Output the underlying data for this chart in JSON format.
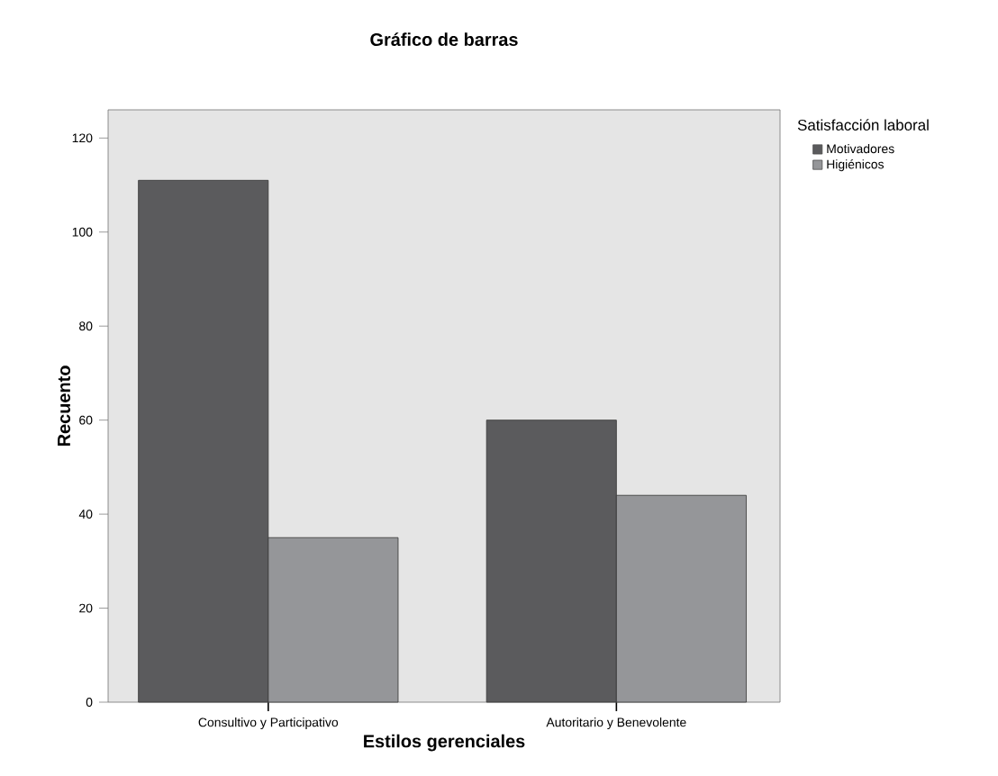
{
  "chart_data": {
    "type": "bar",
    "title": "Gráfico de barras",
    "xlabel": "Estilos gerenciales",
    "ylabel": "Recuento",
    "legend_title": "Satisfacción laboral",
    "categories": [
      "Consultivo y Participativo",
      "Autoritario y Benevolente"
    ],
    "series": [
      {
        "name": "Motivadores",
        "color": "#5b5b5d",
        "values": [
          111,
          60
        ]
      },
      {
        "name": "Higiénicos",
        "color": "#959699",
        "values": [
          35,
          44
        ]
      }
    ],
    "ylim": [
      0,
      126
    ],
    "yticks": [
      0,
      20,
      40,
      60,
      80,
      100,
      120
    ],
    "grid": false,
    "legend": "top right"
  }
}
